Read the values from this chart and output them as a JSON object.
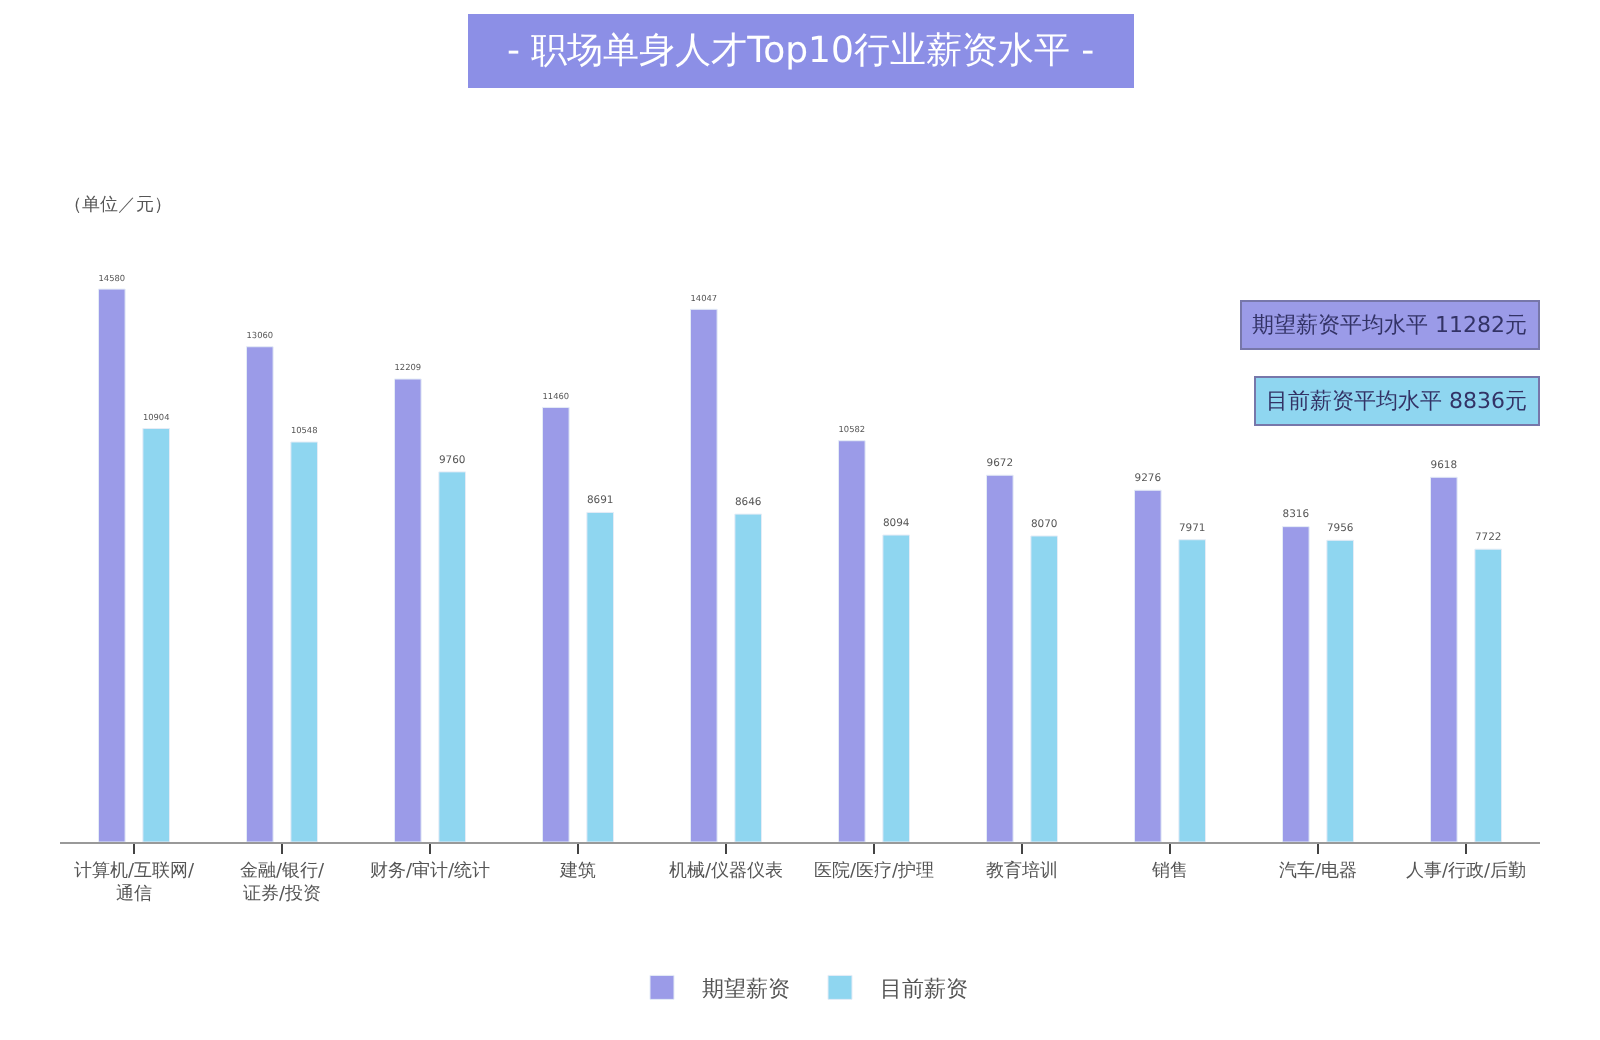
{
  "chart_data": {
    "type": "bar",
    "title": "- 职场单身人才Top10行业薪资水平 -",
    "categories": [
      "计算机/互联网/通信",
      "金融/银行/证券/投资",
      "财务/审计/统计",
      "建筑",
      "机械/仪器仪表",
      "医院/医疗/护理",
      "教育培训",
      "销售",
      "汽车/电器",
      "人事/行政/后勤"
    ],
    "series": [
      {
        "name": "期望薪资",
        "color": "#9b9be8",
        "values": [
          14580,
          13060,
          12209,
          11460,
          14047,
          10582,
          9672,
          9276,
          8316,
          9618
        ]
      },
      {
        "name": "目前薪资",
        "color": "#8fd6f0",
        "values": [
          10904,
          10548,
          9760,
          8691,
          8646,
          8094,
          8070,
          7971,
          7956,
          7722
        ]
      }
    ],
    "annotations": [
      "（单位／元）",
      "期望薪资平均水平 11282元",
      "目前薪资平均水平 8836元"
    ],
    "data_labels": true,
    "legend": "bottom"
  }
}
